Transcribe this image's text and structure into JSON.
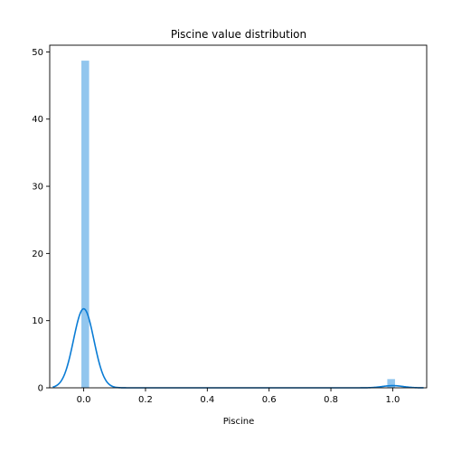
{
  "chart_data": {
    "type": "histogram",
    "title": "Piscine value distribution",
    "xlabel": "Piscine",
    "ylabel": "",
    "xlim": [
      -0.11,
      1.11
    ],
    "ylim": [
      0,
      51
    ],
    "x_ticks": [
      0.0,
      0.2,
      0.4,
      0.6,
      0.8,
      1.0
    ],
    "x_tick_labels": [
      "0.0",
      "0.2",
      "0.4",
      "0.6",
      "0.8",
      "1.0"
    ],
    "y_ticks": [
      0,
      10,
      20,
      30,
      40,
      50
    ],
    "y_tick_labels": [
      "0",
      "10",
      "20",
      "30",
      "40",
      "50"
    ],
    "bins": [
      {
        "x0": -0.0075,
        "x1": 0.0175,
        "height": 48.7
      },
      {
        "x0": 0.9825,
        "x1": 1.0075,
        "height": 1.3
      }
    ],
    "bar_color": "#92C6EE",
    "kde_color": "#0A7CD5",
    "kde_series": {
      "components": [
        {
          "mean": 0.0,
          "sd": 0.033,
          "weight": 0.973
        },
        {
          "mean": 1.0,
          "sd": 0.033,
          "weight": 0.027
        }
      ],
      "x_range": [
        -0.1,
        1.1
      ]
    },
    "grid": false,
    "legend": "none"
  }
}
